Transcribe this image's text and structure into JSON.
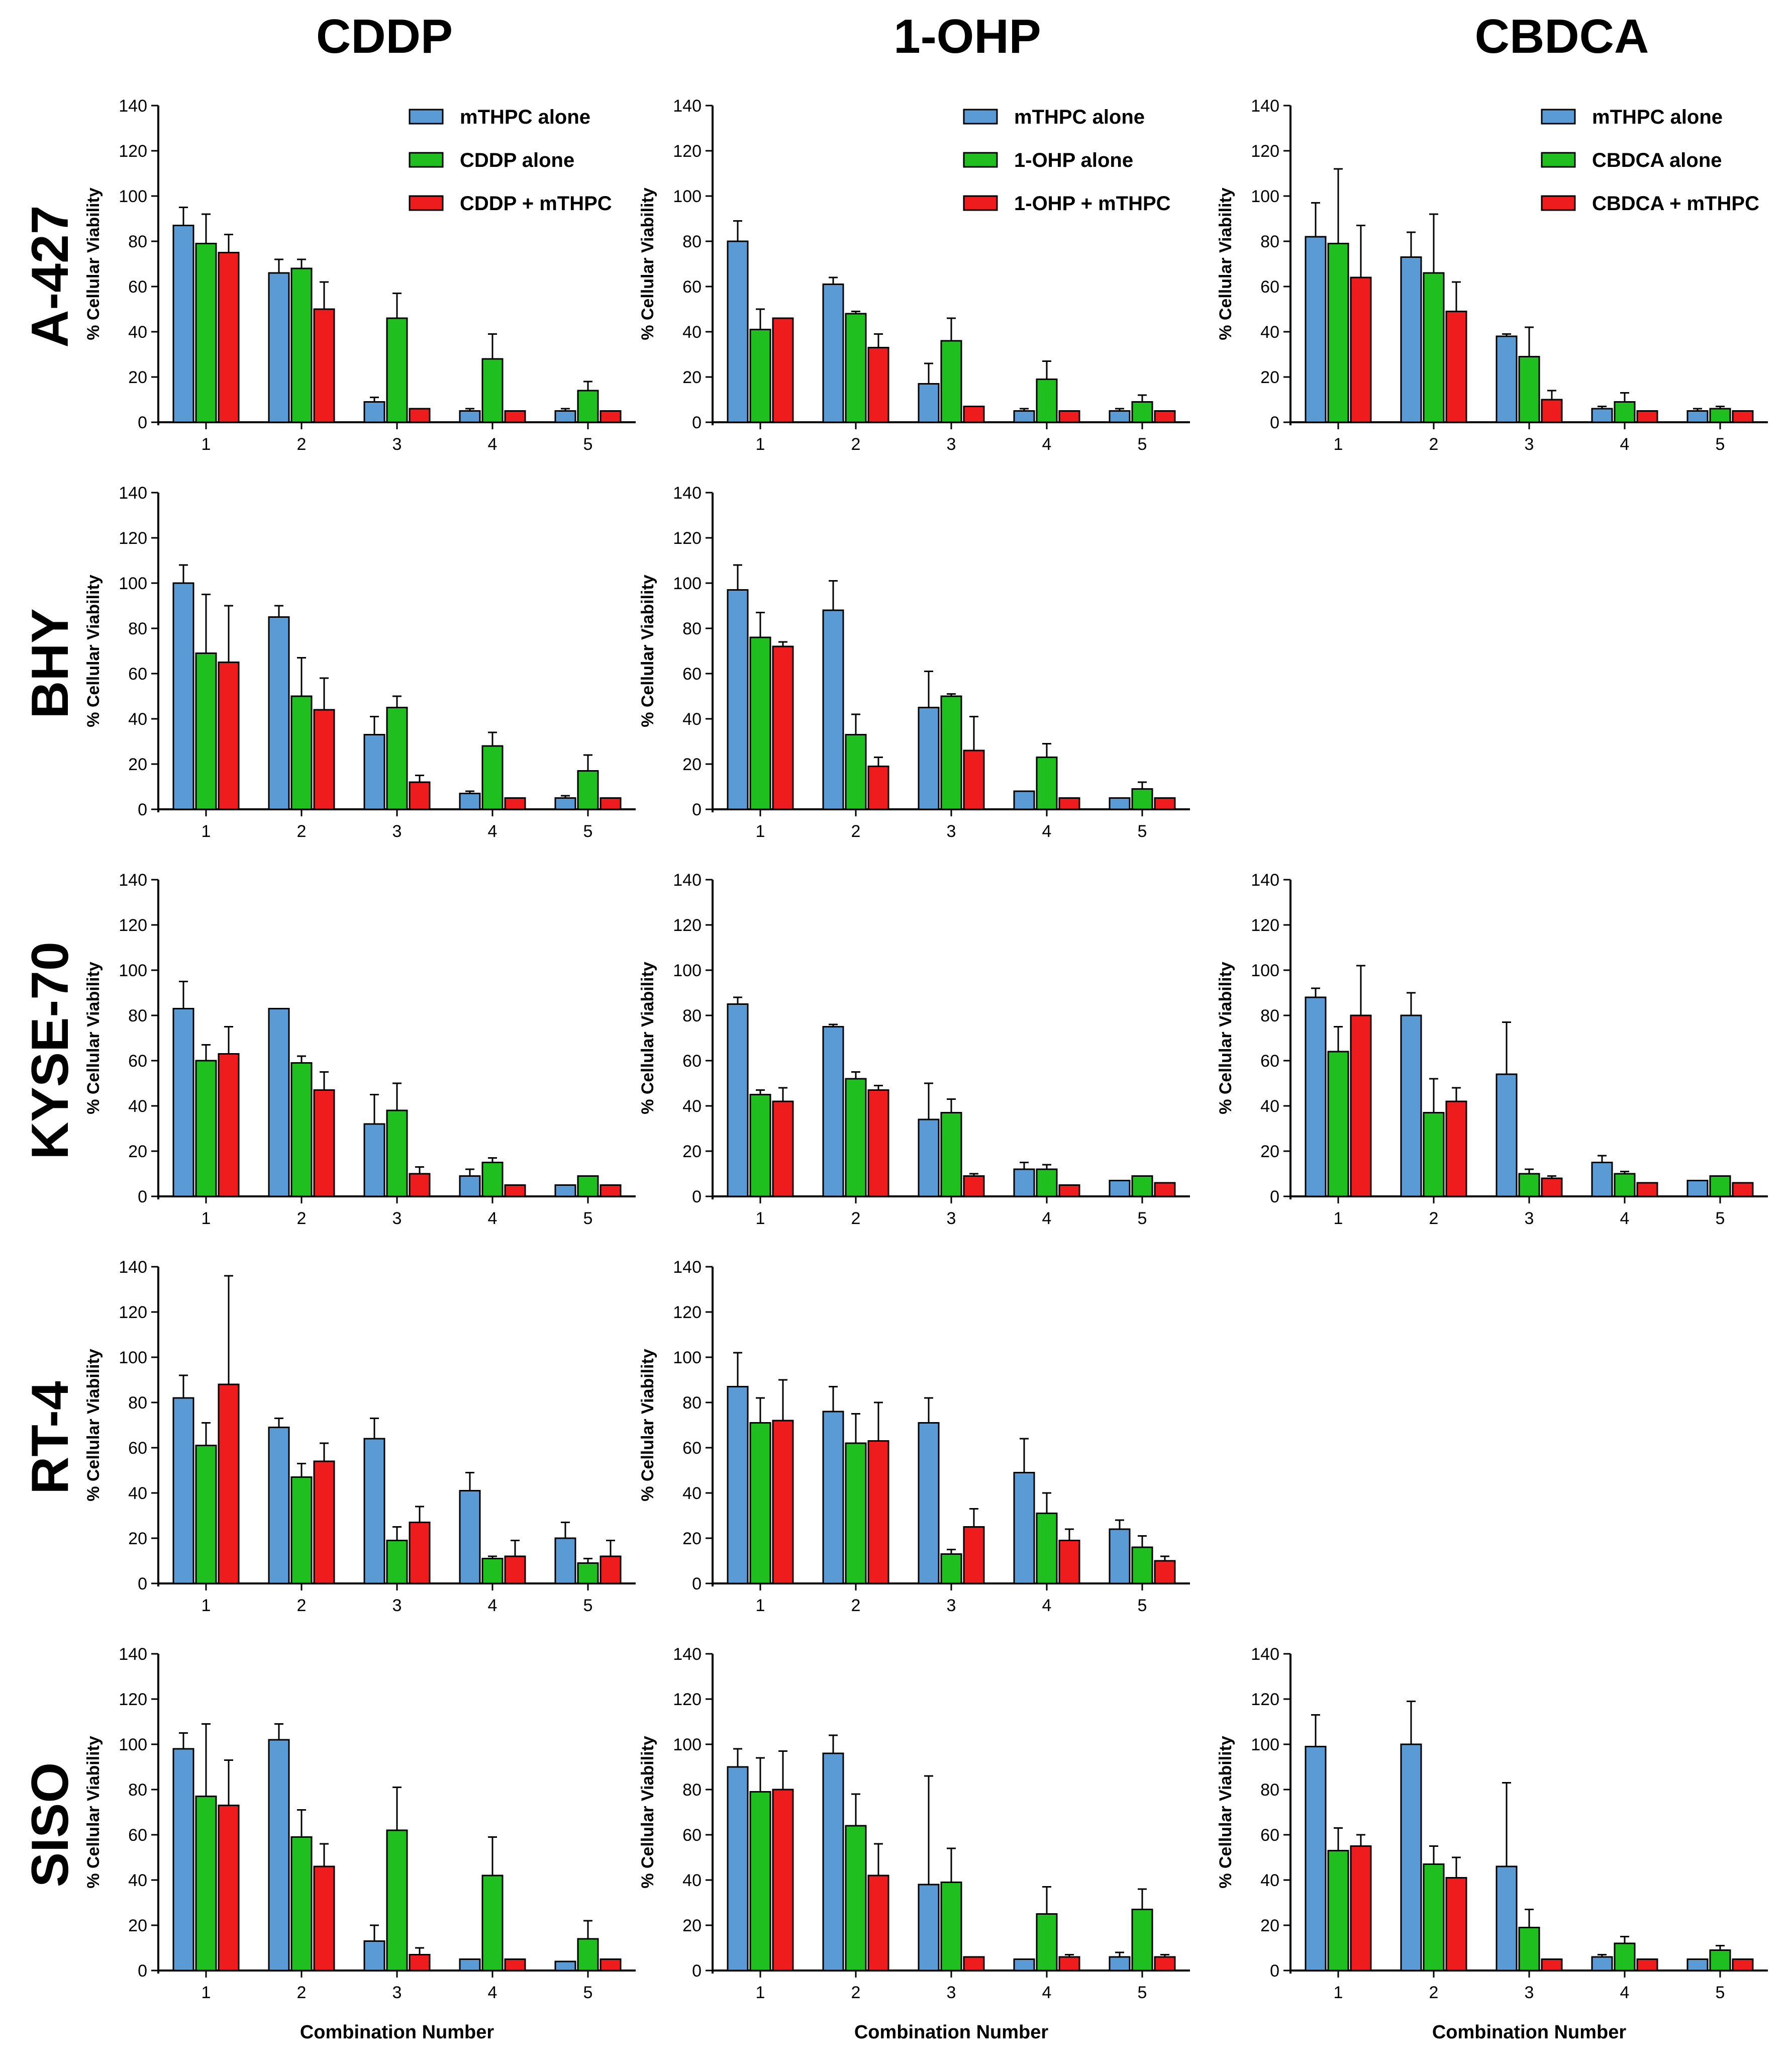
{
  "figure": {
    "column_titles": [
      "CDDP",
      "1-OHP",
      "CBDCA"
    ],
    "row_labels": [
      "A-427",
      "BHY",
      "KYSE-70",
      "RT-4",
      "SISO"
    ],
    "ylabel": "% Cellular Viability",
    "xlabel": "Combination Number"
  },
  "colors": {
    "mthpc": "#5b9bd5",
    "drug": "#1fbf1f",
    "combo": "#ee1c1c"
  },
  "chart_data": [
    {
      "type": "bar",
      "row": "A-427",
      "column": "CDDP",
      "categories": [
        "1",
        "2",
        "3",
        "4",
        "5"
      ],
      "ylim": [
        0,
        140
      ],
      "yticks": [
        0,
        20,
        40,
        60,
        80,
        100,
        120,
        140
      ],
      "legend": "top-right",
      "series": [
        {
          "name": "mTHPC alone",
          "values": [
            87,
            66,
            9,
            5,
            5
          ],
          "errors": [
            8,
            6,
            2,
            1,
            1
          ]
        },
        {
          "name": "CDDP alone",
          "values": [
            79,
            68,
            46,
            28,
            14
          ],
          "errors": [
            13,
            4,
            11,
            11,
            4
          ]
        },
        {
          "name": "CDDP + mTHPC",
          "values": [
            75,
            50,
            6,
            5,
            5
          ],
          "errors": [
            8,
            12,
            0,
            0,
            0
          ]
        }
      ]
    },
    {
      "type": "bar",
      "row": "A-427",
      "column": "1-OHP",
      "categories": [
        "1",
        "2",
        "3",
        "4",
        "5"
      ],
      "ylim": [
        0,
        140
      ],
      "yticks": [
        0,
        20,
        40,
        60,
        80,
        100,
        120,
        140
      ],
      "legend": "top-right",
      "series": [
        {
          "name": "mTHPC alone",
          "values": [
            80,
            61,
            17,
            5,
            5
          ],
          "errors": [
            9,
            3,
            9,
            1,
            1
          ]
        },
        {
          "name": "1-OHP alone",
          "values": [
            41,
            48,
            36,
            19,
            9
          ],
          "errors": [
            9,
            1,
            10,
            8,
            3
          ]
        },
        {
          "name": "1-OHP + mTHPC",
          "values": [
            46,
            33,
            7,
            5,
            5
          ],
          "errors": [
            0,
            6,
            0,
            0,
            0
          ]
        }
      ]
    },
    {
      "type": "bar",
      "row": "A-427",
      "column": "CBDCA",
      "categories": [
        "1",
        "2",
        "3",
        "4",
        "5"
      ],
      "ylim": [
        0,
        140
      ],
      "yticks": [
        0,
        20,
        40,
        60,
        80,
        100,
        120,
        140
      ],
      "legend": "top-right",
      "series": [
        {
          "name": "mTHPC alone",
          "values": [
            82,
            73,
            38,
            6,
            5
          ],
          "errors": [
            15,
            11,
            1,
            1,
            1
          ]
        },
        {
          "name": "CBDCA alone",
          "values": [
            79,
            66,
            29,
            9,
            6
          ],
          "errors": [
            33,
            26,
            13,
            4,
            1
          ]
        },
        {
          "name": "CBDCA + mTHPC",
          "values": [
            64,
            49,
            10,
            5,
            5
          ],
          "errors": [
            23,
            13,
            4,
            0,
            0
          ]
        }
      ]
    },
    {
      "type": "bar",
      "row": "BHY",
      "column": "CDDP",
      "categories": [
        "1",
        "2",
        "3",
        "4",
        "5"
      ],
      "ylim": [
        0,
        140
      ],
      "yticks": [
        0,
        20,
        40,
        60,
        80,
        100,
        120,
        140
      ],
      "legend": "",
      "series": [
        {
          "name": "mTHPC alone",
          "values": [
            100,
            85,
            33,
            7,
            5
          ],
          "errors": [
            8,
            5,
            8,
            1,
            1
          ]
        },
        {
          "name": "CDDP alone",
          "values": [
            69,
            50,
            45,
            28,
            17
          ],
          "errors": [
            26,
            17,
            5,
            6,
            7
          ]
        },
        {
          "name": "CDDP + mTHPC",
          "values": [
            65,
            44,
            12,
            5,
            5
          ],
          "errors": [
            25,
            14,
            3,
            0,
            0
          ]
        }
      ]
    },
    {
      "type": "bar",
      "row": "BHY",
      "column": "1-OHP",
      "categories": [
        "1",
        "2",
        "3",
        "4",
        "5"
      ],
      "ylim": [
        0,
        140
      ],
      "yticks": [
        0,
        20,
        40,
        60,
        80,
        100,
        120,
        140
      ],
      "legend": "",
      "series": [
        {
          "name": "mTHPC alone",
          "values": [
            97,
            88,
            45,
            8,
            5
          ],
          "errors": [
            11,
            13,
            16,
            0,
            0
          ]
        },
        {
          "name": "1-OHP alone",
          "values": [
            76,
            33,
            50,
            23,
            9
          ],
          "errors": [
            11,
            9,
            1,
            6,
            3
          ]
        },
        {
          "name": "1-OHP + mTHPC",
          "values": [
            72,
            19,
            26,
            5,
            5
          ],
          "errors": [
            2,
            4,
            15,
            0,
            0
          ]
        }
      ]
    },
    {
      "type": "bar",
      "row": "KYSE-70",
      "column": "CDDP",
      "categories": [
        "1",
        "2",
        "3",
        "4",
        "5"
      ],
      "ylim": [
        0,
        140
      ],
      "yticks": [
        0,
        20,
        40,
        60,
        80,
        100,
        120,
        140
      ],
      "legend": "",
      "series": [
        {
          "name": "mTHPC alone",
          "values": [
            83,
            83,
            32,
            9,
            5
          ],
          "errors": [
            12,
            0,
            13,
            3,
            0
          ]
        },
        {
          "name": "CDDP alone",
          "values": [
            60,
            59,
            38,
            15,
            9
          ],
          "errors": [
            7,
            3,
            12,
            2,
            0
          ]
        },
        {
          "name": "CDDP + mTHPC",
          "values": [
            63,
            47,
            10,
            5,
            5
          ],
          "errors": [
            12,
            8,
            3,
            0,
            0
          ]
        }
      ]
    },
    {
      "type": "bar",
      "row": "KYSE-70",
      "column": "1-OHP",
      "categories": [
        "1",
        "2",
        "3",
        "4",
        "5"
      ],
      "ylim": [
        0,
        140
      ],
      "yticks": [
        0,
        20,
        40,
        60,
        80,
        100,
        120,
        140
      ],
      "legend": "",
      "series": [
        {
          "name": "mTHPC alone",
          "values": [
            85,
            75,
            34,
            12,
            7
          ],
          "errors": [
            3,
            1,
            16,
            3,
            0
          ]
        },
        {
          "name": "1-OHP alone",
          "values": [
            45,
            52,
            37,
            12,
            9
          ],
          "errors": [
            2,
            3,
            6,
            2,
            0
          ]
        },
        {
          "name": "1-OHP + mTHPC",
          "values": [
            42,
            47,
            9,
            5,
            6
          ],
          "errors": [
            6,
            2,
            1,
            0,
            0
          ]
        }
      ]
    },
    {
      "type": "bar",
      "row": "KYSE-70",
      "column": "CBDCA",
      "categories": [
        "1",
        "2",
        "3",
        "4",
        "5"
      ],
      "ylim": [
        0,
        140
      ],
      "yticks": [
        0,
        20,
        40,
        60,
        80,
        100,
        120,
        140
      ],
      "legend": "",
      "series": [
        {
          "name": "mTHPC alone",
          "values": [
            88,
            80,
            54,
            15,
            7
          ],
          "errors": [
            4,
            10,
            23,
            3,
            0
          ]
        },
        {
          "name": "CBDCA alone",
          "values": [
            64,
            37,
            10,
            10,
            9
          ],
          "errors": [
            11,
            15,
            2,
            1,
            0
          ]
        },
        {
          "name": "CBDCA + mTHPC",
          "values": [
            80,
            42,
            8,
            6,
            6
          ],
          "errors": [
            22,
            6,
            1,
            0,
            0
          ]
        }
      ]
    },
    {
      "type": "bar",
      "row": "RT-4",
      "column": "CDDP",
      "categories": [
        "1",
        "2",
        "3",
        "4",
        "5"
      ],
      "ylim": [
        0,
        140
      ],
      "yticks": [
        0,
        20,
        40,
        60,
        80,
        100,
        120,
        140
      ],
      "legend": "",
      "series": [
        {
          "name": "mTHPC alone",
          "values": [
            82,
            69,
            64,
            41,
            20
          ],
          "errors": [
            10,
            4,
            9,
            8,
            7
          ]
        },
        {
          "name": "CDDP alone",
          "values": [
            61,
            47,
            19,
            11,
            9
          ],
          "errors": [
            10,
            6,
            6,
            1,
            2
          ]
        },
        {
          "name": "CDDP + mTHPC",
          "values": [
            88,
            54,
            27,
            12,
            12
          ],
          "errors": [
            48,
            8,
            7,
            7,
            7
          ]
        }
      ]
    },
    {
      "type": "bar",
      "row": "RT-4",
      "column": "1-OHP",
      "categories": [
        "1",
        "2",
        "3",
        "4",
        "5"
      ],
      "ylim": [
        0,
        140
      ],
      "yticks": [
        0,
        20,
        40,
        60,
        80,
        100,
        120,
        140
      ],
      "legend": "",
      "series": [
        {
          "name": "mTHPC alone",
          "values": [
            87,
            76,
            71,
            49,
            24
          ],
          "errors": [
            15,
            11,
            11,
            15,
            4
          ]
        },
        {
          "name": "1-OHP alone",
          "values": [
            71,
            62,
            13,
            31,
            16
          ],
          "errors": [
            11,
            13,
            2,
            9,
            5
          ]
        },
        {
          "name": "1-OHP + mTHPC",
          "values": [
            72,
            63,
            25,
            19,
            10
          ],
          "errors": [
            18,
            17,
            8,
            5,
            2
          ]
        }
      ]
    },
    {
      "type": "bar",
      "row": "SISO",
      "column": "CDDP",
      "categories": [
        "1",
        "2",
        "3",
        "4",
        "5"
      ],
      "ylim": [
        0,
        140
      ],
      "yticks": [
        0,
        20,
        40,
        60,
        80,
        100,
        120,
        140
      ],
      "legend": "",
      "series": [
        {
          "name": "mTHPC alone",
          "values": [
            98,
            102,
            13,
            5,
            4
          ],
          "errors": [
            7,
            7,
            7,
            0,
            0
          ]
        },
        {
          "name": "CDDP alone",
          "values": [
            77,
            59,
            62,
            42,
            14
          ],
          "errors": [
            32,
            12,
            19,
            17,
            8
          ]
        },
        {
          "name": "CDDP + mTHPC",
          "values": [
            73,
            46,
            7,
            5,
            5
          ],
          "errors": [
            20,
            10,
            3,
            0,
            0
          ]
        }
      ]
    },
    {
      "type": "bar",
      "row": "SISO",
      "column": "1-OHP",
      "categories": [
        "1",
        "2",
        "3",
        "4",
        "5"
      ],
      "ylim": [
        0,
        140
      ],
      "yticks": [
        0,
        20,
        40,
        60,
        80,
        100,
        120,
        140
      ],
      "legend": "",
      "series": [
        {
          "name": "mTHPC alone",
          "values": [
            90,
            96,
            38,
            5,
            6
          ],
          "errors": [
            8,
            8,
            48,
            0,
            2
          ]
        },
        {
          "name": "1-OHP alone",
          "values": [
            79,
            64,
            39,
            25,
            27
          ],
          "errors": [
            15,
            14,
            15,
            12,
            9
          ]
        },
        {
          "name": "1-OHP + mTHPC",
          "values": [
            80,
            42,
            6,
            6,
            6
          ],
          "errors": [
            17,
            14,
            0,
            1,
            1
          ]
        }
      ]
    },
    {
      "type": "bar",
      "row": "SISO",
      "column": "CBDCA",
      "categories": [
        "1",
        "2",
        "3",
        "4",
        "5"
      ],
      "ylim": [
        0,
        140
      ],
      "yticks": [
        0,
        20,
        40,
        60,
        80,
        100,
        120,
        140
      ],
      "legend": "",
      "series": [
        {
          "name": "mTHPC alone",
          "values": [
            99,
            100,
            46,
            6,
            5
          ],
          "errors": [
            14,
            19,
            37,
            1,
            0
          ]
        },
        {
          "name": "CBDCA alone",
          "values": [
            53,
            47,
            19,
            12,
            9
          ],
          "errors": [
            10,
            8,
            8,
            3,
            2
          ]
        },
        {
          "name": "CBDCA + mTHPC",
          "values": [
            55,
            41,
            5,
            5,
            5
          ],
          "errors": [
            5,
            9,
            0,
            0,
            0
          ]
        }
      ]
    }
  ]
}
